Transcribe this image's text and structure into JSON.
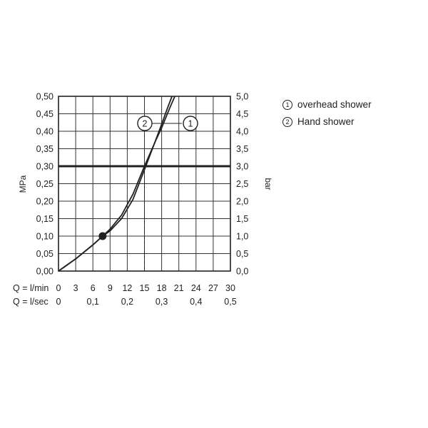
{
  "chart_data": {
    "type": "line",
    "ylabel_left": "MPa",
    "ylabel_right": "bar",
    "xlabel_lmin": "Q = l/min",
    "xlabel_lsec": "Q = l/sec",
    "xlim": [
      0,
      30
    ],
    "ylim": [
      0,
      0.5
    ],
    "grid": true,
    "legend_position": "top-right",
    "left_ticks": [
      "0,00",
      "0,05",
      "0,10",
      "0,15",
      "0,20",
      "0,25",
      "0,30",
      "0,35",
      "0,40",
      "0,45",
      "0,50"
    ],
    "right_ticks": [
      "0,0",
      "0,5",
      "1,0",
      "1,5",
      "2,0",
      "2,5",
      "3,0",
      "3,5",
      "4,0",
      "4,5",
      "5,0"
    ],
    "lmin_ticks": [
      "0",
      "3",
      "6",
      "9",
      "12",
      "15",
      "18",
      "21",
      "24",
      "27",
      "30"
    ],
    "lsec_ticks": [
      {
        "value": 0,
        "label": "0"
      },
      {
        "value": 6,
        "label": "0,1"
      },
      {
        "value": 12,
        "label": "0,2"
      },
      {
        "value": 18,
        "label": "0,3"
      },
      {
        "value": 24,
        "label": "0,4"
      },
      {
        "value": 30,
        "label": "0,5"
      }
    ],
    "reference_line_mpa": 0.3,
    "reference_drop_lmin": 15,
    "operating_point": {
      "x": 7.7,
      "y": 0.1
    },
    "series": [
      {
        "name": "overhead shower",
        "marker": "1",
        "x": [
          0,
          3,
          6,
          7.7,
          9,
          11,
          13,
          15,
          17,
          18,
          19.5,
          20.3
        ],
        "y": [
          0,
          0.035,
          0.075,
          0.1,
          0.12,
          0.16,
          0.22,
          0.3,
          0.375,
          0.41,
          0.47,
          0.5
        ]
      },
      {
        "name": "Hand shower",
        "marker": "2",
        "x": [
          0,
          3,
          6,
          7.7,
          9,
          11,
          13,
          15,
          16.5,
          18,
          19,
          19.8
        ],
        "y": [
          0,
          0.035,
          0.075,
          0.1,
          0.115,
          0.15,
          0.205,
          0.29,
          0.355,
          0.42,
          0.465,
          0.5
        ]
      }
    ]
  },
  "legend": {
    "items": [
      {
        "marker": "1",
        "label": "overhead shower"
      },
      {
        "marker": "2",
        "label": "Hand shower"
      }
    ]
  }
}
